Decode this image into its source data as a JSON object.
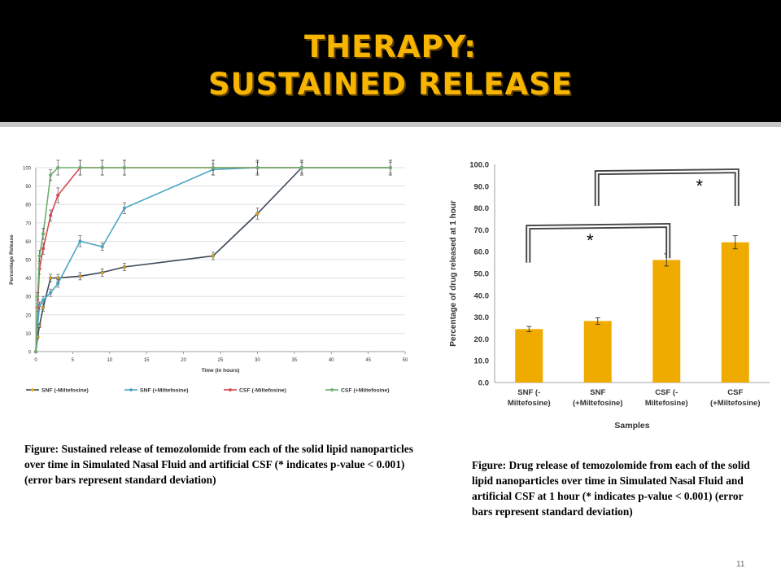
{
  "header": {
    "title_line1": "THERAPY:",
    "title_line2": "SUSTAINED RELEASE",
    "title_color": "#f7b500"
  },
  "captions": {
    "line_chart": "Figure: Sustained release of temozolomide from each of the solid lipid nanoparticles over time in Simulated Nasal Fluid and artificial CSF (* indicates p-value < 0.001) (error bars represent standard deviation)",
    "bar_chart": "Figure: Drug release of temozolomide from each of the solid lipid nanoparticles over time in Simulated Nasal Fluid and artificial CSF at 1 hour (* indicates p-value < 0.001) (error bars represent standard deviation)"
  },
  "page_number": "11",
  "chart_data": [
    {
      "type": "line",
      "title": "",
      "xlabel": "Time (in hours)",
      "ylabel": "Percentage Release",
      "xlim": [
        0,
        50
      ],
      "ylim": [
        0,
        100
      ],
      "x_ticks": [
        "0",
        "5",
        "10",
        "15",
        "20",
        "25",
        "30",
        "35",
        "40",
        "45",
        "50"
      ],
      "y_ticks": [
        "0",
        "10",
        "20",
        "30",
        "40",
        "50",
        "60",
        "70",
        "80",
        "90",
        "100"
      ],
      "grid": true,
      "legend_position": "bottom",
      "series": [
        {
          "name": "SNF (-Miltefosine)",
          "color": "#3c4858",
          "x": [
            0,
            0.25,
            0.5,
            1,
            2,
            3,
            6,
            9,
            12,
            24,
            30,
            36
          ],
          "y": [
            0,
            8,
            14,
            24,
            40,
            40,
            41,
            43,
            46,
            52,
            75,
            100
          ],
          "err": [
            0,
            1,
            1,
            2,
            2,
            2,
            2,
            2,
            2,
            2,
            3,
            3
          ]
        },
        {
          "name": "SNF (+Miltefosine)",
          "color": "#4aa6c4",
          "x": [
            0,
            0.25,
            0.5,
            1,
            2,
            3,
            6,
            9,
            12,
            24,
            30,
            36,
            48
          ],
          "y": [
            0,
            14,
            25,
            28,
            32,
            37,
            60,
            57,
            78,
            99,
            100,
            100,
            100
          ],
          "err": [
            0,
            1,
            2,
            2,
            2,
            2,
            3,
            2,
            3,
            3,
            3,
            3,
            3
          ]
        },
        {
          "name": "CSF (-Miltefosine)",
          "color": "#d8474f",
          "x": [
            0,
            0.25,
            0.5,
            1,
            2,
            3,
            6,
            9,
            12,
            24,
            30,
            36,
            48
          ],
          "y": [
            0,
            24,
            45,
            56,
            74,
            85,
            100,
            100,
            100,
            100,
            100,
            100,
            100
          ],
          "err": [
            0,
            2,
            3,
            3,
            3,
            4,
            4,
            4,
            4,
            4,
            4,
            4,
            4
          ]
        },
        {
          "name": "CSF (+Miltefosine)",
          "color": "#6db06e",
          "x": [
            0,
            0.25,
            0.5,
            1,
            2,
            3,
            6,
            9,
            12,
            24,
            30,
            36,
            48
          ],
          "y": [
            0,
            30,
            52,
            64,
            96,
            100,
            100,
            100,
            100,
            100,
            100,
            100,
            100
          ],
          "err": [
            0,
            2,
            3,
            3,
            3,
            4,
            4,
            4,
            4,
            4,
            4,
            4,
            4
          ]
        }
      ]
    },
    {
      "type": "bar",
      "title": "",
      "xlabel": "Samples",
      "ylabel": "Percentage of drug released at 1 hour",
      "ylim": [
        0,
        100
      ],
      "y_ticks": [
        "0.0",
        "10.0",
        "20.0",
        "30.0",
        "40.0",
        "50.0",
        "60.0",
        "70.0",
        "80.0",
        "90.0",
        "100.0"
      ],
      "bar_color": "#f0ab00",
      "categories": [
        [
          "SNF (-",
          "Miltefosine)"
        ],
        [
          "SNF",
          "(+Miltefosine)"
        ],
        [
          "CSF (-",
          "Miltefosine)"
        ],
        [
          "CSF",
          "(+Miltefosine)"
        ]
      ],
      "values": [
        24.5,
        28.2,
        56.2,
        64.3
      ],
      "err": [
        1.2,
        1.5,
        2.8,
        3.0
      ],
      "significance": [
        {
          "from": 0,
          "to": 2,
          "label": "*",
          "left_y": 55,
          "right_y": 72
        },
        {
          "from": 1,
          "to": 3,
          "label": "*",
          "left_y": 81,
          "right_y": 97
        }
      ]
    }
  ]
}
